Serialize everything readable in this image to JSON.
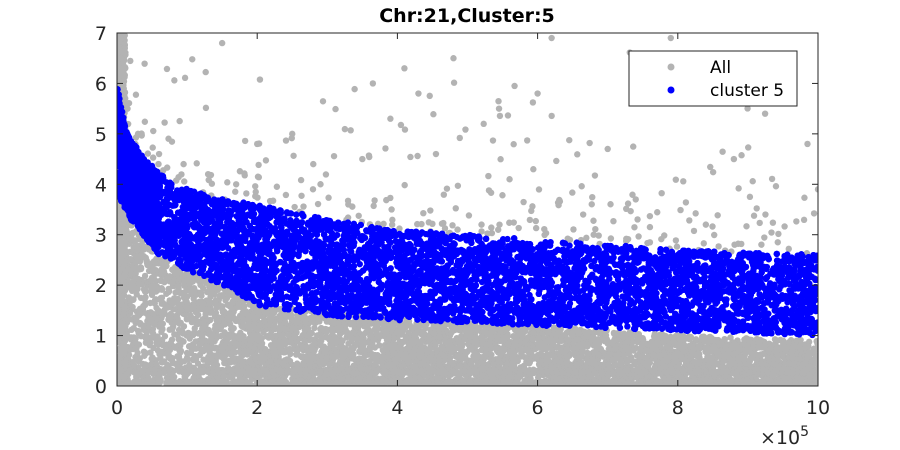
{
  "chart_data": {
    "type": "scatter",
    "title": "Chr:21,Cluster:5",
    "xlabel": "",
    "ylabel": "",
    "xlim": [
      0,
      1000000
    ],
    "ylim": [
      0,
      7
    ],
    "x_ticks": [
      0,
      200000,
      400000,
      600000,
      800000,
      1000000
    ],
    "x_tick_labels": [
      "0",
      "2",
      "4",
      "6",
      "8",
      "10"
    ],
    "x_exponent_base": "×10",
    "x_exponent_power": "5",
    "y_ticks": [
      0,
      1,
      2,
      3,
      4,
      5,
      6,
      7
    ],
    "y_tick_labels": [
      "0",
      "1",
      "2",
      "3",
      "4",
      "5",
      "6",
      "7"
    ],
    "grid": false,
    "legend_position": "top-right",
    "series": [
      {
        "name": "All",
        "color": "#b3b3b3",
        "description_points": [
          [
            0,
            6.9
          ],
          [
            5000,
            6.5
          ],
          [
            8000,
            6.0
          ],
          [
            15000,
            5.5
          ],
          [
            30000,
            5.0
          ],
          [
            60000,
            4.6
          ],
          [
            95000,
            4.4
          ],
          [
            130000,
            4.2
          ],
          [
            150000,
            6.8
          ],
          [
            170000,
            4.0
          ],
          [
            250000,
            5.0
          ],
          [
            280000,
            4.4
          ],
          [
            330000,
            3.6
          ],
          [
            365000,
            6.0
          ],
          [
            390000,
            5.3
          ],
          [
            410000,
            6.3
          ],
          [
            430000,
            5.8
          ],
          [
            480000,
            6.5
          ],
          [
            520000,
            3.2
          ],
          [
            545000,
            5.5
          ],
          [
            600000,
            5.8
          ],
          [
            620000,
            6.9
          ],
          [
            665000,
            3.4
          ],
          [
            700000,
            4.7
          ],
          [
            740000,
            3.7
          ],
          [
            790000,
            6.9
          ],
          [
            840000,
            3.2
          ],
          [
            880000,
            4.5
          ],
          [
            925000,
            3.4
          ],
          [
            985000,
            4.8
          ],
          [
            1000000,
            3.9
          ],
          [
            455000,
            4.6
          ],
          [
            350000,
            4.5
          ],
          [
            200000,
            4.8
          ],
          [
            560000,
            4.1
          ],
          [
            680000,
            3.0
          ]
        ],
        "band_lower": [
          [
            0,
            0.0
          ],
          [
            1000000,
            0.0
          ]
        ],
        "band_upper": [
          [
            0,
            4.2
          ],
          [
            20000,
            3.2
          ],
          [
            60000,
            2.6
          ],
          [
            130000,
            2.2
          ],
          [
            200000,
            1.6
          ],
          [
            400000,
            1.4
          ],
          [
            600000,
            1.2
          ],
          [
            800000,
            1.0
          ],
          [
            1000000,
            0.9
          ]
        ]
      },
      {
        "name": "cluster 5",
        "color": "#0000ff",
        "band_lower": [
          [
            0,
            3.8
          ],
          [
            20000,
            3.3
          ],
          [
            60000,
            2.6
          ],
          [
            100000,
            2.3
          ],
          [
            150000,
            2.0
          ],
          [
            200000,
            1.6
          ],
          [
            300000,
            1.4
          ],
          [
            400000,
            1.3
          ],
          [
            600000,
            1.2
          ],
          [
            800000,
            1.1
          ],
          [
            1000000,
            1.0
          ]
        ],
        "band_upper": [
          [
            0,
            6.0
          ],
          [
            5000,
            5.6
          ],
          [
            15000,
            5.0
          ],
          [
            40000,
            4.5
          ],
          [
            80000,
            4.0
          ],
          [
            150000,
            3.7
          ],
          [
            200000,
            3.6
          ],
          [
            300000,
            3.3
          ],
          [
            400000,
            3.1
          ],
          [
            600000,
            2.9
          ],
          [
            800000,
            2.7
          ],
          [
            1000000,
            2.6
          ]
        ]
      }
    ]
  }
}
